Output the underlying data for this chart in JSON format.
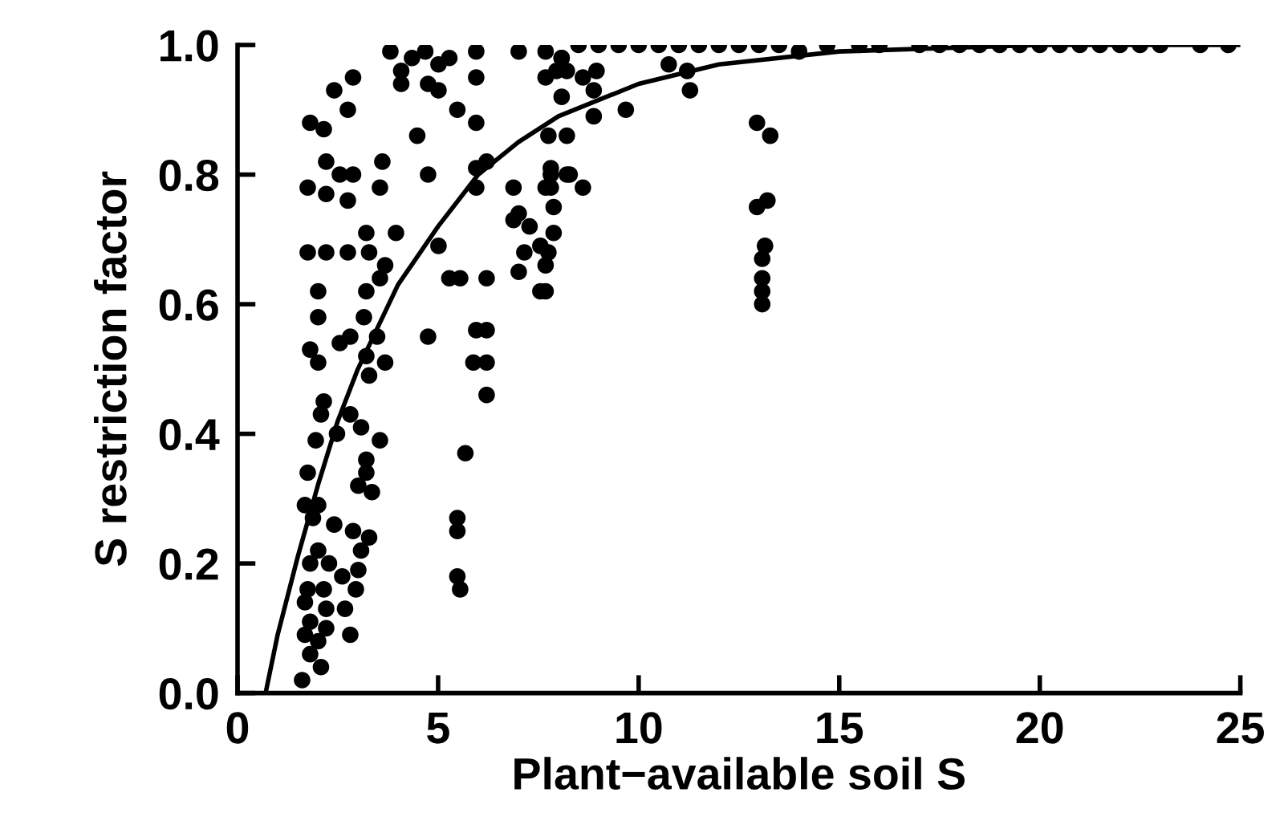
{
  "chart_data": {
    "type": "scatter",
    "xlabel": "Plant−available soil S",
    "ylabel": "S restriction factor",
    "xlim": [
      0,
      25
    ],
    "ylim": [
      0,
      1.0
    ],
    "xticks": [
      0,
      5,
      10,
      15,
      20,
      25
    ],
    "yticks": [
      {
        "value": 0,
        "label": "0.0"
      },
      {
        "value": 0.2,
        "label": "0.2"
      },
      {
        "value": 0.4,
        "label": "0.4"
      },
      {
        "value": 0.6,
        "label": "0.6"
      },
      {
        "value": 0.8,
        "label": "0.8"
      },
      {
        "value": 1.0,
        "label": "1.0"
      }
    ],
    "grid": false,
    "legend": false,
    "marker": "circle",
    "series": [
      {
        "color": "#000000",
        "x": [
          3.81,
          4.08,
          4.35,
          4.68,
          5.01,
          5.28,
          4.75,
          5.01,
          4.08,
          5.95,
          5.95,
          7.01,
          7.68,
          8.08,
          7.68,
          8.21,
          2.88,
          2.41,
          2.75,
          1.81,
          2.15,
          4.48,
          5.48,
          5.95,
          2.21,
          2.55,
          2.88,
          3.61,
          1.75,
          2.21,
          2.75,
          3.55,
          4.75,
          5.95,
          6.21,
          5.95,
          6.88,
          7.01,
          6.88,
          7.28,
          7.68,
          7.81,
          8.21,
          7.55,
          7.68,
          7.15,
          7.01,
          7.55,
          1.75,
          2.21,
          2.75,
          3.21,
          3.28,
          3.95,
          3.68,
          3.55,
          5.01,
          5.28,
          5.55,
          6.21,
          2.01,
          3.21,
          2.01,
          3.15,
          5.95,
          6.21,
          4.75,
          5.88,
          6.21,
          3.48,
          1.81,
          2.01,
          2.55,
          2.81,
          3.21,
          3.68,
          3.28,
          2.15,
          2.08,
          2.81,
          3.08,
          3.55,
          1.95,
          2.48,
          3.21,
          1.75,
          3.21,
          3.01,
          3.35,
          6.21,
          5.68,
          1.68,
          2.01,
          1.88,
          2.41,
          2.88,
          3.28,
          3.08,
          2.01,
          2.28,
          1.81,
          2.61,
          3.01,
          2.95,
          1.75,
          2.15,
          1.68,
          2.21,
          2.68,
          1.81,
          2.21,
          2.81,
          1.68,
          2.01,
          1.81,
          2.08,
          1.61,
          5.48,
          5.48,
          5.48,
          5.55,
          8.08,
          7.95,
          8.95,
          8.61,
          8.88,
          8.08,
          8.88,
          9.68,
          8.21,
          7.75,
          10.75,
          11.21,
          11.28,
          7.81,
          8.28,
          8.61,
          7.81,
          7.88,
          7.88,
          7.75,
          7.68,
          12.95,
          13.28,
          12.95,
          13.21,
          13.15,
          13.08,
          13.08,
          13.08,
          13.08,
          8.5,
          9,
          9.5,
          10,
          10.5,
          11,
          11.5,
          12,
          12.5,
          13,
          13.5,
          14,
          14.7,
          15.5,
          16,
          17,
          17.5,
          18,
          18.5,
          19,
          19.5,
          20,
          20.5,
          21,
          21.5,
          22,
          22.5,
          23,
          24,
          24.7
        ],
        "values": [
          0.99,
          0.96,
          0.98,
          0.99,
          0.97,
          0.98,
          0.94,
          0.93,
          0.94,
          0.99,
          0.95,
          0.99,
          0.99,
          0.98,
          0.95,
          0.96,
          0.95,
          0.93,
          0.9,
          0.88,
          0.87,
          0.86,
          0.9,
          0.88,
          0.82,
          0.8,
          0.8,
          0.82,
          0.78,
          0.77,
          0.76,
          0.78,
          0.8,
          0.81,
          0.82,
          0.78,
          0.78,
          0.74,
          0.73,
          0.72,
          0.78,
          0.81,
          0.8,
          0.69,
          0.66,
          0.68,
          0.65,
          0.62,
          0.68,
          0.68,
          0.68,
          0.71,
          0.68,
          0.71,
          0.66,
          0.64,
          0.69,
          0.64,
          0.64,
          0.64,
          0.62,
          0.62,
          0.58,
          0.58,
          0.56,
          0.56,
          0.55,
          0.51,
          0.51,
          0.55,
          0.53,
          0.51,
          0.54,
          0.55,
          0.52,
          0.51,
          0.49,
          0.45,
          0.43,
          0.43,
          0.41,
          0.39,
          0.39,
          0.4,
          0.36,
          0.34,
          0.34,
          0.32,
          0.31,
          0.46,
          0.37,
          0.29,
          0.29,
          0.27,
          0.26,
          0.25,
          0.24,
          0.22,
          0.22,
          0.2,
          0.2,
          0.18,
          0.19,
          0.16,
          0.16,
          0.16,
          0.14,
          0.13,
          0.13,
          0.11,
          0.1,
          0.09,
          0.09,
          0.08,
          0.06,
          0.04,
          0.02,
          0.27,
          0.25,
          0.18,
          0.16,
          0.98,
          0.96,
          0.96,
          0.95,
          0.93,
          0.92,
          0.89,
          0.9,
          0.86,
          0.86,
          0.97,
          0.96,
          0.93,
          0.8,
          0.8,
          0.78,
          0.78,
          0.75,
          0.71,
          0.68,
          0.62,
          0.88,
          0.86,
          0.75,
          0.76,
          0.69,
          0.67,
          0.64,
          0.62,
          0.6,
          1.0,
          1.0,
          1.0,
          1.0,
          1.0,
          1.0,
          1.0,
          1.0,
          1.0,
          1.0,
          1.0,
          0.99,
          1.0,
          1.0,
          1.0,
          1.0,
          1.0,
          1.0,
          1.0,
          1.0,
          1.0,
          1.0,
          1.0,
          1.0,
          1.0,
          1.0,
          1.0,
          1.0,
          1.0,
          1.0
        ]
      },
      {
        "type": "line",
        "color": "#000000",
        "marker": "none",
        "line_style": "solid",
        "x": [
          0.7,
          1,
          1.5,
          2,
          2.5,
          3,
          4,
          5,
          6,
          7,
          8,
          10,
          12,
          15,
          20,
          25
        ],
        "values": [
          0,
          0.09,
          0.21,
          0.32,
          0.42,
          0.5,
          0.63,
          0.72,
          0.8,
          0.85,
          0.89,
          0.94,
          0.97,
          0.99,
          1.0,
          1.0
        ]
      }
    ]
  }
}
